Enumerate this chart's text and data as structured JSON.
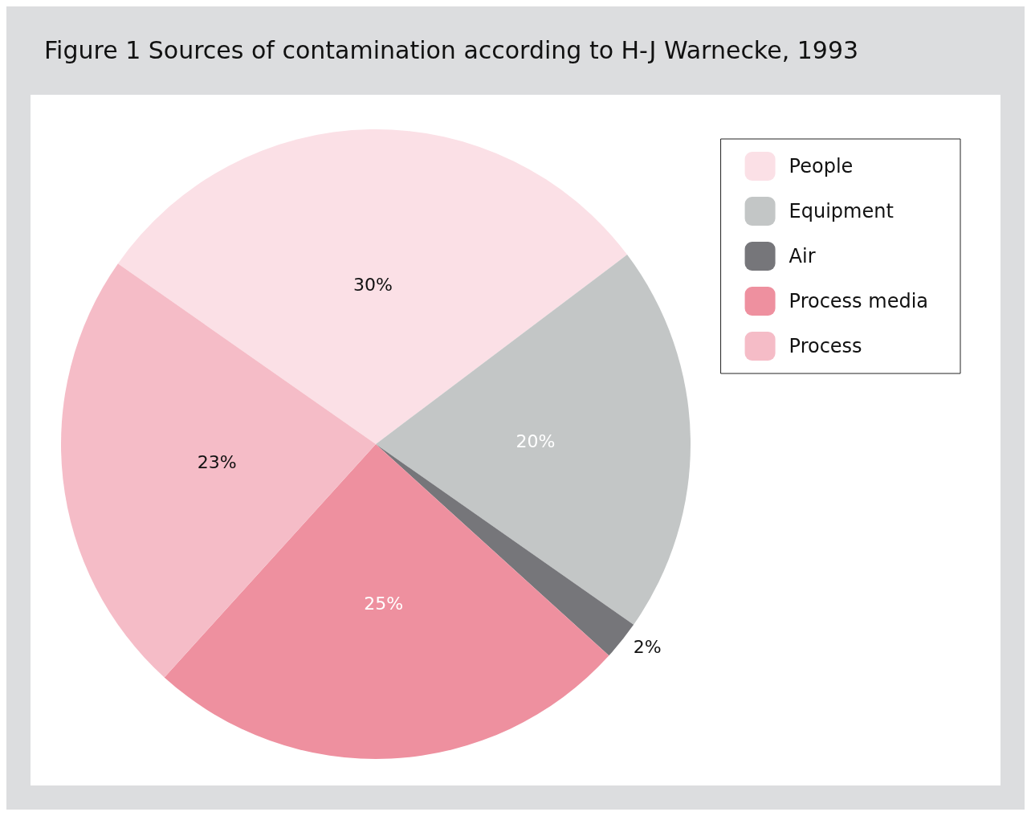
{
  "chart_data": {
    "type": "pie",
    "title": "Figure 1 Sources of contamination according to H-J Warnecke, 1993",
    "categories": [
      "People",
      "Equipment",
      "Air",
      "Process media",
      "Process"
    ],
    "values": [
      30,
      20,
      2,
      25,
      23
    ],
    "colors": [
      "#fbe0e6",
      "#c3c6c6",
      "#76767a",
      "#ee909f",
      "#f5bcc7"
    ],
    "value_labels": [
      "30%",
      "20%",
      "2%",
      "25%",
      "23%"
    ],
    "legend": "top right"
  }
}
